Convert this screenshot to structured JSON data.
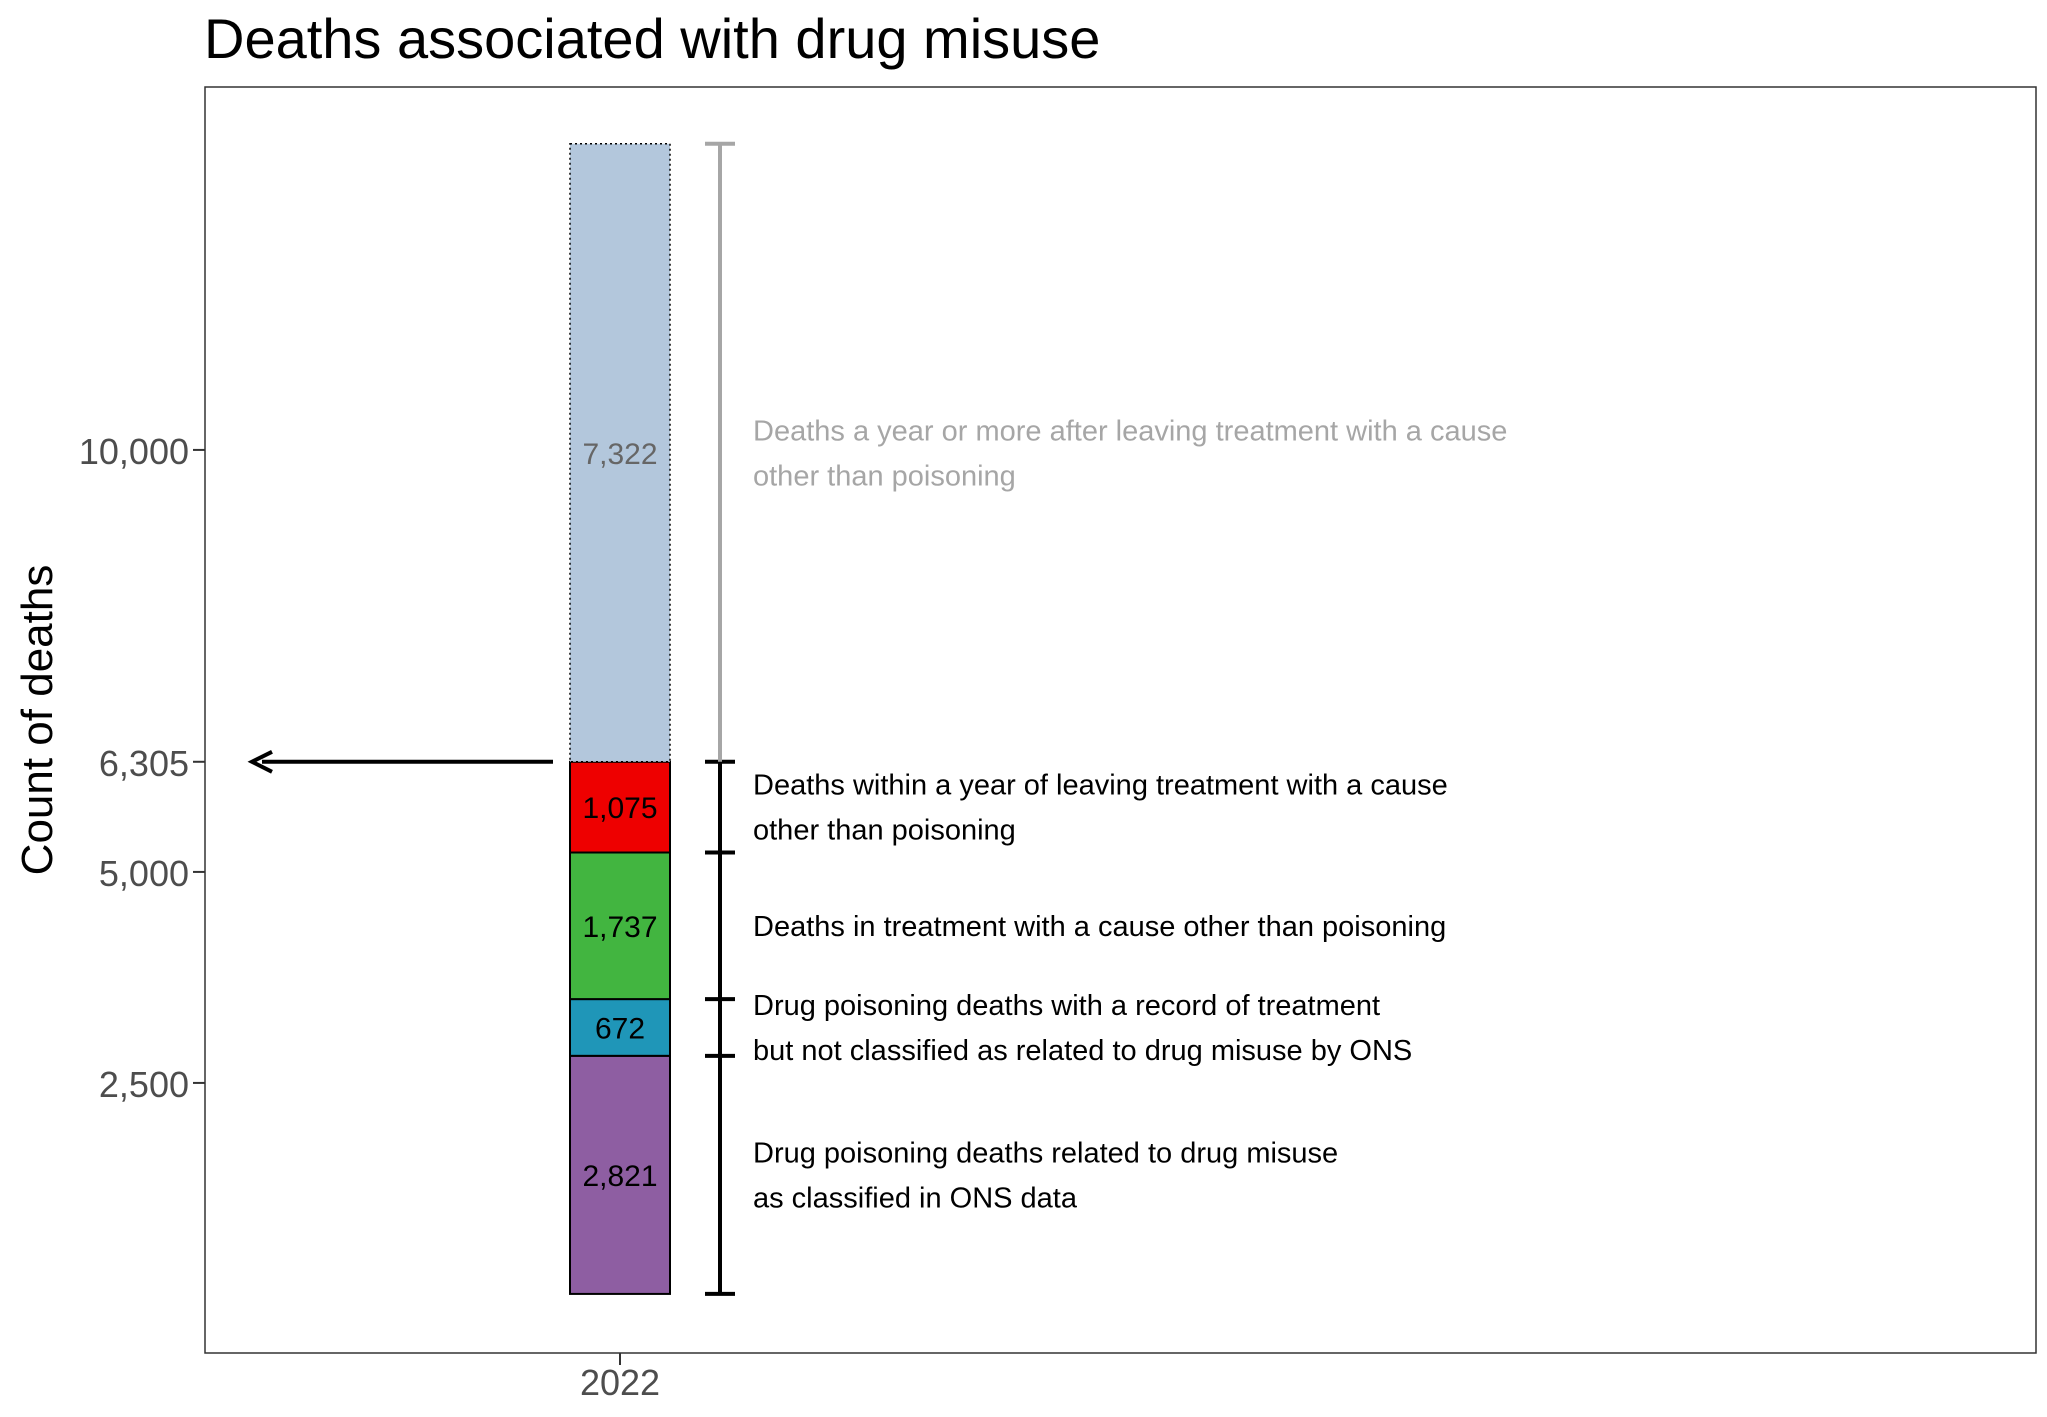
{
  "chart_data": {
    "type": "bar",
    "title": "Deaths associated with drug misuse",
    "xlabel": "",
    "ylabel": "Count of deaths",
    "categories": [
      "2022"
    ],
    "ylim": [
      -700,
      14300
    ],
    "y_ticks": [
      {
        "value": 2500,
        "label": "2,500"
      },
      {
        "value": 5000,
        "label": "5,000"
      },
      {
        "value": 6305,
        "label": "6,305"
      },
      {
        "value": 10000,
        "label": "10,000"
      }
    ],
    "grid": false,
    "legend": "none",
    "stacked": true,
    "series": [
      {
        "category": "2022",
        "value": 2821,
        "label": "2,821",
        "color": "#8e5ea2",
        "style": "solid",
        "annotation": [
          "Drug poisoning deaths related to drug misuse",
          "as classified in ONS data"
        ]
      },
      {
        "category": "2022",
        "value": 672,
        "label": "672",
        "color": "#1f96b8",
        "style": "solid",
        "annotation": [
          "Drug poisoning deaths with a record of treatment",
          "but not classified as related to drug misuse by ONS"
        ]
      },
      {
        "category": "2022",
        "value": 1737,
        "label": "1,737",
        "color": "#42b540",
        "style": "solid",
        "annotation": [
          "Deaths in treatment with a cause other than poisoning"
        ]
      },
      {
        "category": "2022",
        "value": 1075,
        "label": "1,075",
        "color": "#ee0000",
        "style": "solid",
        "annotation": [
          "Deaths within a year of leaving treatment with a cause",
          "other than poisoning"
        ]
      },
      {
        "category": "2022",
        "value": 7322,
        "label": "7,322",
        "color": "#b3c7dc",
        "style": "dotted",
        "annotation": [
          "Deaths a year or more after leaving treatment with a cause",
          "other than poisoning"
        ]
      }
    ],
    "arrow_at_value": 6305,
    "colors": {
      "text_dark": "#000000",
      "text_muted": "#a6a6a6",
      "label_muted": "#666666",
      "axis_text": "#4d4d4d"
    }
  }
}
